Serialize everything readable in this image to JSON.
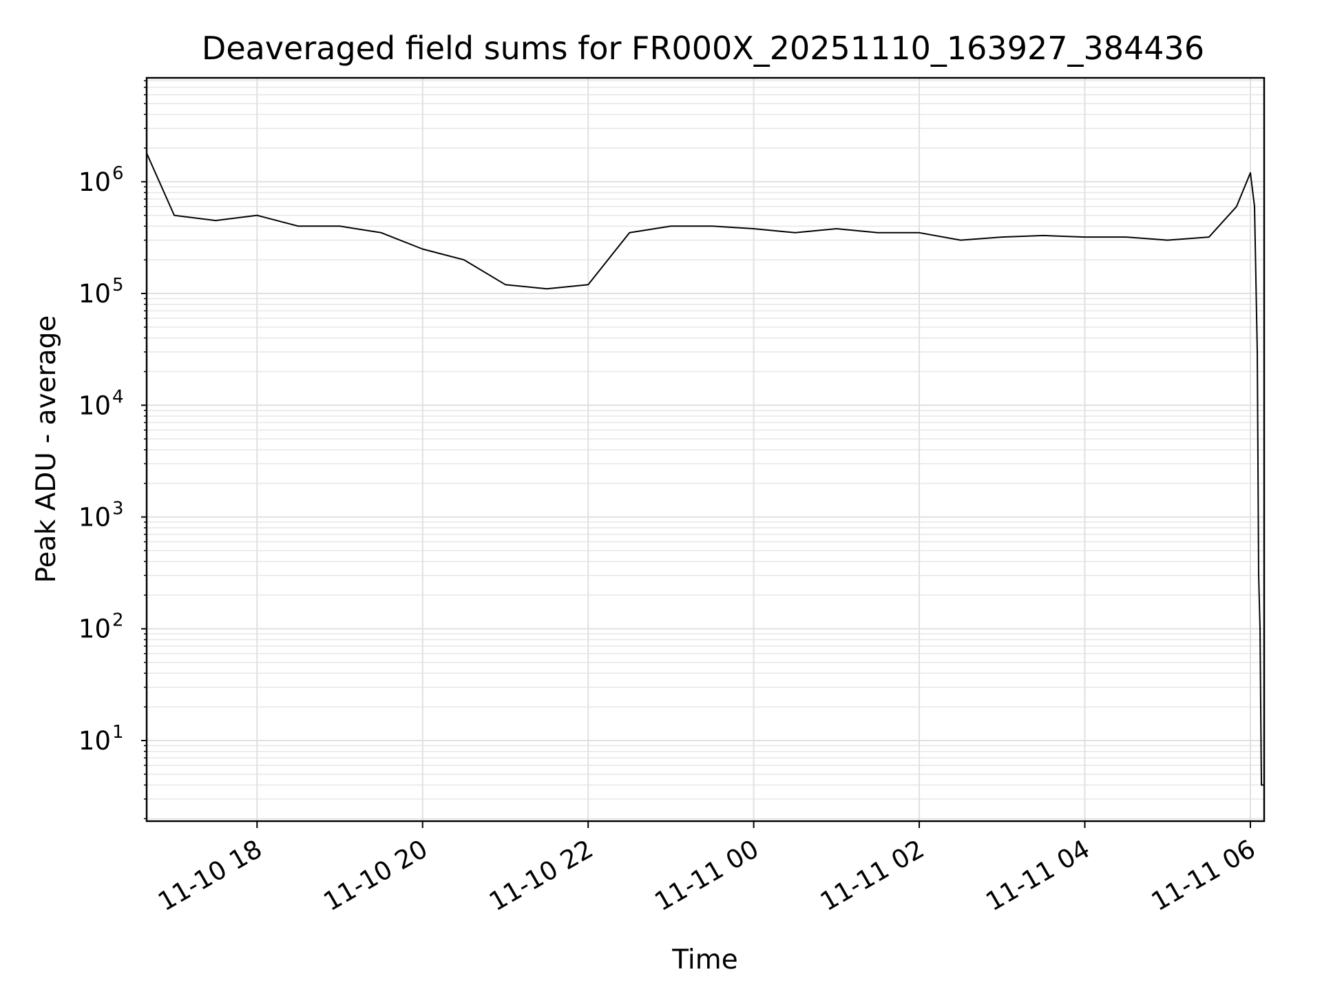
{
  "chart_data": {
    "type": "line",
    "title": "Deaveraged field sums for FR000X_20251110_163927_384436",
    "xlabel": "Time",
    "ylabel": "Peak ADU - average",
    "yscale": "log",
    "xlim": [
      "2025-11-10 16:40",
      "2025-11-11 06:10"
    ],
    "ylim": [
      1.9,
      8500000
    ],
    "grid": true,
    "x_ticks": [
      {
        "time": "2025-11-10 18:00",
        "label": "11-10 18"
      },
      {
        "time": "2025-11-10 20:00",
        "label": "11-10 20"
      },
      {
        "time": "2025-11-10 22:00",
        "label": "11-10 22"
      },
      {
        "time": "2025-11-11 00:00",
        "label": "11-11 00"
      },
      {
        "time": "2025-11-11 02:00",
        "label": "11-11 02"
      },
      {
        "time": "2025-11-11 04:00",
        "label": "11-11 04"
      },
      {
        "time": "2025-11-11 06:00",
        "label": "11-11 06"
      }
    ],
    "y_ticks": [
      {
        "value": 10,
        "base": "10",
        "exp": "1"
      },
      {
        "value": 100,
        "base": "10",
        "exp": "2"
      },
      {
        "value": 1000,
        "base": "10",
        "exp": "3"
      },
      {
        "value": 10000,
        "base": "10",
        "exp": "4"
      },
      {
        "value": 100000,
        "base": "10",
        "exp": "5"
      },
      {
        "value": 1000000,
        "base": "10",
        "exp": "6"
      }
    ],
    "series": [
      {
        "color": "#000000",
        "x": [
          "2025-11-10 16:40",
          "2025-11-10 17:00",
          "2025-11-10 17:30",
          "2025-11-10 18:00",
          "2025-11-10 18:30",
          "2025-11-10 19:00",
          "2025-11-10 19:30",
          "2025-11-10 20:00",
          "2025-11-10 20:30",
          "2025-11-10 21:00",
          "2025-11-10 21:30",
          "2025-11-10 22:00",
          "2025-11-10 22:30",
          "2025-11-10 23:00",
          "2025-11-10 23:30",
          "2025-11-11 00:00",
          "2025-11-11 00:30",
          "2025-11-11 01:00",
          "2025-11-11 01:30",
          "2025-11-11 02:00",
          "2025-11-11 02:30",
          "2025-11-11 03:00",
          "2025-11-11 03:30",
          "2025-11-11 04:00",
          "2025-11-11 04:30",
          "2025-11-11 05:00",
          "2025-11-11 05:30",
          "2025-11-11 05:50",
          "2025-11-11 06:00",
          "2025-11-11 06:03",
          "2025-11-11 06:05",
          "2025-11-11 06:06",
          "2025-11-11 06:07",
          "2025-11-11 06:08",
          "2025-11-11 06:10"
        ],
        "y": [
          1800000,
          500000,
          450000,
          500000,
          400000,
          400000,
          350000,
          250000,
          200000,
          120000,
          110000,
          120000,
          350000,
          400000,
          400000,
          380000,
          350000,
          380000,
          350000,
          350000,
          300000,
          320000,
          330000,
          320000,
          320000,
          300000,
          320000,
          600000,
          1200000,
          600000,
          30000,
          300,
          100,
          4,
          4
        ]
      }
    ]
  }
}
